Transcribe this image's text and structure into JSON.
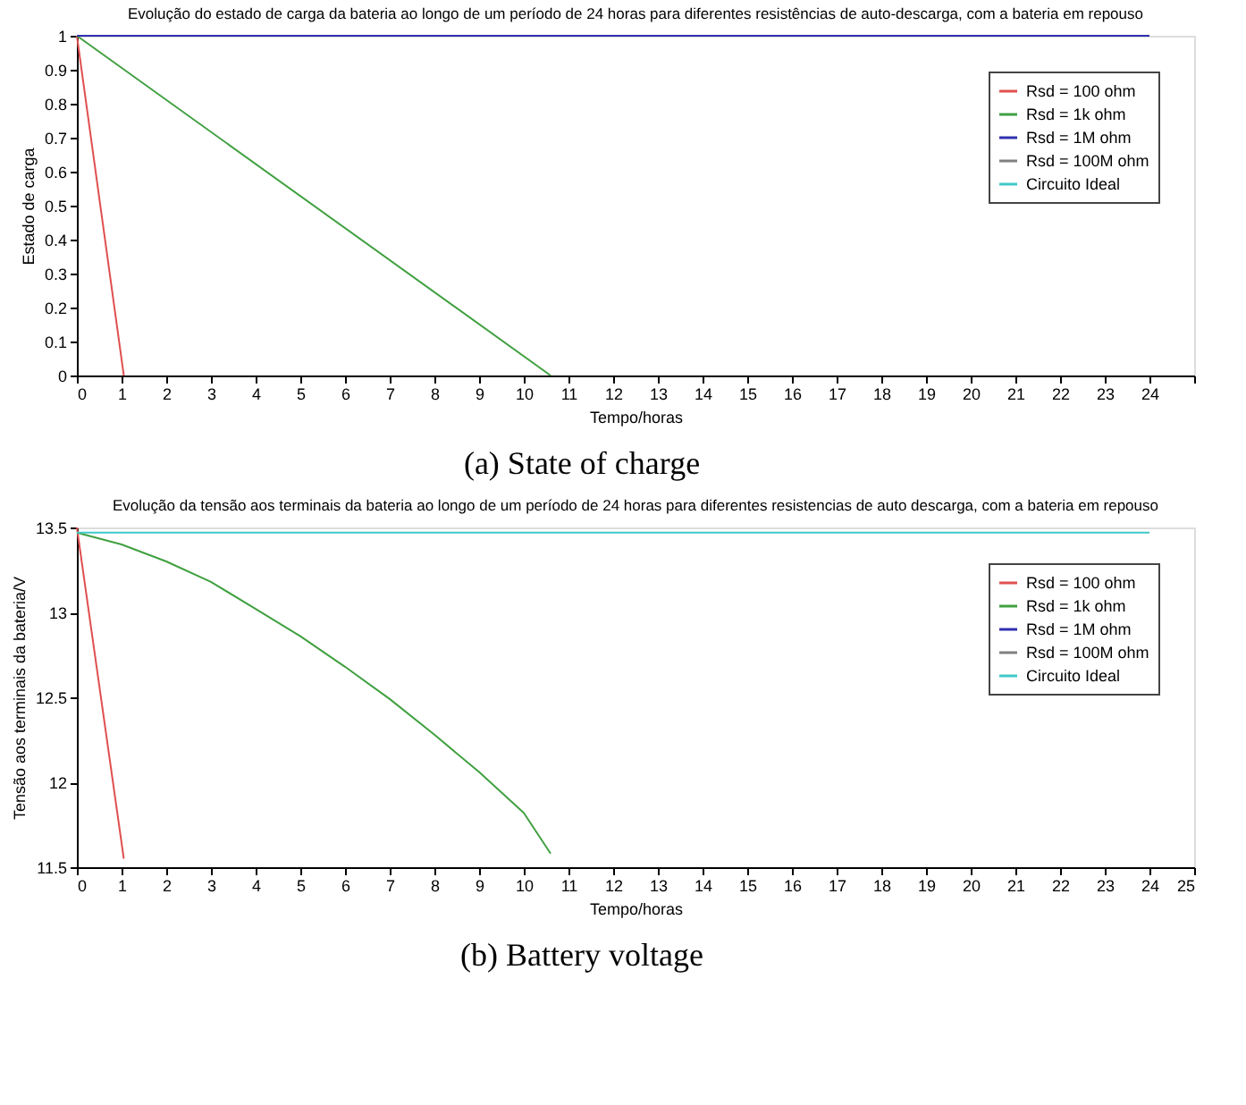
{
  "chart_data": [
    {
      "type": "line",
      "title": "Evolução do estado de carga da bateria ao longo de um período de 24 horas para diferentes resistências de auto-descarga, com a bateria em repouso",
      "xlabel": "Tempo/horas",
      "ylabel": "Estado de carga",
      "annotations": [
        "(a) State of charge"
      ],
      "xlim": [
        0,
        25
      ],
      "xticks": [
        0,
        1,
        2,
        3,
        4,
        5,
        6,
        7,
        8,
        9,
        10,
        11,
        12,
        13,
        14,
        15,
        16,
        17,
        18,
        19,
        20,
        21,
        22,
        23,
        24,
        {
          "value": 25,
          "label": null
        }
      ],
      "ylim": [
        0,
        1
      ],
      "yticks": [
        0,
        0.1,
        0.2,
        0.3,
        0.4,
        0.5,
        0.6,
        0.7,
        0.8,
        0.9,
        1
      ],
      "grid": false,
      "legend": "top right",
      "line_style": "solid",
      "marker": "none",
      "series": [
        {
          "name": "Rsd = 100 ohm",
          "color": "#e05050",
          "x": [
            0,
            1.05
          ],
          "values": [
            1,
            0
          ]
        },
        {
          "name": "Rsd = 1k ohm",
          "color": "#40a040",
          "x": [
            0,
            10.6
          ],
          "values": [
            1,
            0
          ]
        },
        {
          "name": "Rsd = 1M ohm",
          "color": "#3030b0",
          "x": [
            0,
            24
          ],
          "values": [
            1,
            1
          ]
        },
        {
          "name": "Rsd = 100M ohm",
          "color": "#808080",
          "values": [
            null,
            null
          ]
        },
        {
          "name": "Circuito Ideal",
          "color": "#40c8c8",
          "values": [
            null,
            null
          ]
        }
      ]
    },
    {
      "type": "line",
      "title": "Evolução da tensão aos terminais da bateria ao longo de um período de 24 horas para diferentes resistencias de auto descarga, com a bateria em repouso",
      "xlabel": "Tempo/horas",
      "ylabel": "Tensão aos terminais da bateria/V",
      "annotations": [
        "(b) Battery voltage"
      ],
      "xlim": [
        0,
        25
      ],
      "xticks": [
        0,
        1,
        2,
        3,
        4,
        5,
        6,
        7,
        8,
        9,
        10,
        11,
        12,
        13,
        14,
        15,
        16,
        17,
        18,
        19,
        20,
        21,
        22,
        23,
        24,
        25
      ],
      "ylim": [
        11.5,
        13.5
      ],
      "yticks": [
        11.5,
        12,
        12.5,
        13,
        13.5
      ],
      "grid": false,
      "legend": "top right",
      "line_style": "solid",
      "marker": "none",
      "series": [
        {
          "name": "Rsd = 100 ohm",
          "color": "#e05050",
          "x": [
            0,
            1.05
          ],
          "values": [
            13.5,
            11.55
          ]
        },
        {
          "name": "Rsd = 1k ohm",
          "color": "#40a040",
          "x": [
            0,
            1,
            2,
            3,
            4,
            5,
            6,
            7,
            8,
            9,
            10,
            10.6
          ],
          "values": [
            13.47,
            13.4,
            13.3,
            13.18,
            13.02,
            12.86,
            12.68,
            12.49,
            12.28,
            12.06,
            11.82,
            11.58
          ]
        },
        {
          "name": "Rsd = 1M ohm",
          "color": "#3030b0",
          "values": [
            null,
            null
          ]
        },
        {
          "name": "Rsd = 100M ohm",
          "color": "#808080",
          "values": [
            null,
            null
          ]
        },
        {
          "name": "Circuito Ideal",
          "color": "#40c8c8",
          "x": [
            0,
            24
          ],
          "values": [
            13.47,
            13.47
          ]
        }
      ]
    }
  ]
}
